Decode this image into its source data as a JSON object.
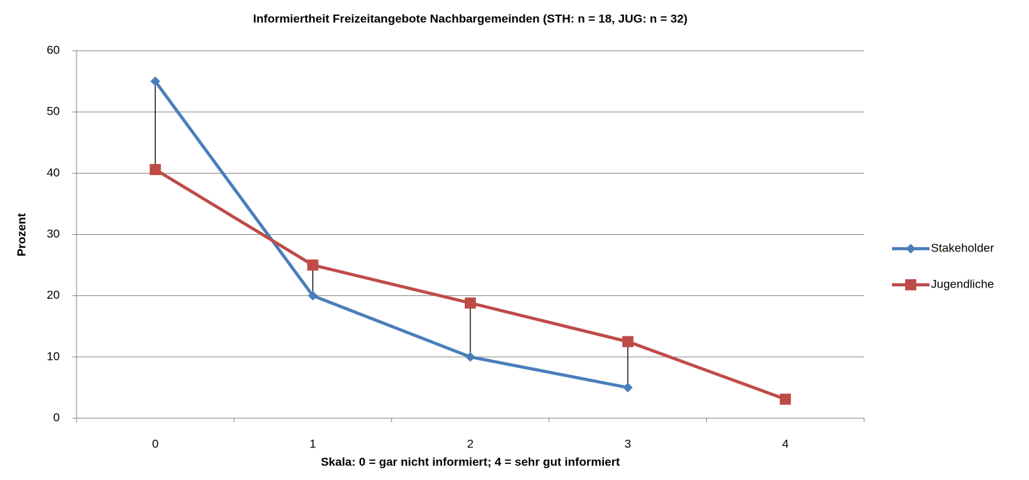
{
  "chart_data": {
    "type": "line",
    "title": "Informiertheit Freizeitangebote Nachbargemeinden (STH: n = 18, JUG: n = 32)",
    "xlabel": "Skala: 0 = gar nicht informiert; 4 = sehr gut informiert",
    "ylabel": "Prozent",
    "categories": [
      "0",
      "1",
      "2",
      "3",
      "4"
    ],
    "series": [
      {
        "name": "Stakeholder",
        "color": "#4a7ebb",
        "marker": "diamond",
        "values": [
          55,
          20,
          10,
          5,
          null
        ]
      },
      {
        "name": "Jugendliche",
        "color": "#be4b48",
        "marker": "square",
        "values": [
          40.6,
          25,
          18.8,
          12.5,
          3.1
        ]
      }
    ],
    "high_low_lines": true,
    "ylim": [
      0,
      60
    ],
    "yticks": [
      0,
      10,
      20,
      30,
      40,
      50,
      60
    ],
    "grid": true,
    "legend": "right"
  }
}
